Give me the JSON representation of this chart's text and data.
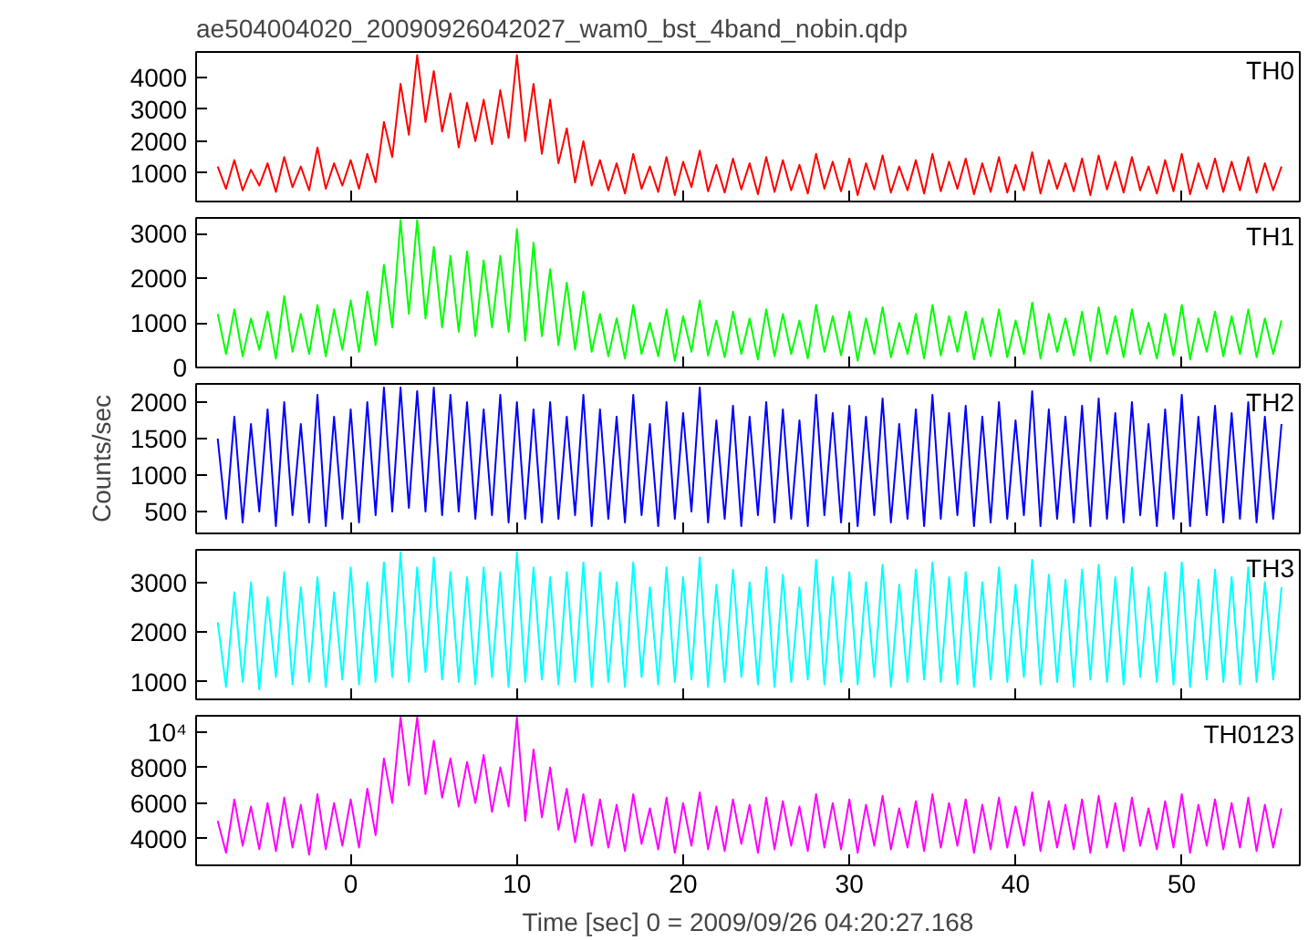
{
  "chart_data": [
    {
      "type": "line",
      "title": "ae504004020_20090926042027_wam0_bst_4band_nobin.qdp",
      "xlim": [
        -9.3,
        57.1
      ],
      "xticks": [
        0,
        10,
        20,
        30,
        40,
        50
      ],
      "ylim": [
        100,
        4800
      ],
      "yticks": [
        1000,
        2000,
        3000,
        4000
      ],
      "tick_labels": "y",
      "x": [
        -8,
        -7.5,
        -7,
        -6.5,
        -6,
        -5.5,
        -5,
        -4.5,
        -4,
        -3.5,
        -3,
        -2.5,
        -2,
        -1.5,
        -1,
        -0.5,
        0,
        0.5,
        1,
        1.5,
        2,
        2.5,
        3,
        3.5,
        4,
        4.5,
        5,
        5.5,
        6,
        6.5,
        7,
        7.5,
        8,
        8.5,
        9,
        9.5,
        10,
        10.5,
        11,
        11.5,
        12,
        12.5,
        13,
        13.5,
        14,
        14.5,
        15,
        15.5,
        16,
        16.5,
        17,
        17.5,
        18,
        18.5,
        19,
        19.5,
        20,
        20.5,
        21,
        21.5,
        22,
        22.5,
        23,
        23.5,
        24,
        24.5,
        25,
        25.5,
        26,
        26.5,
        27,
        27.5,
        28,
        28.5,
        29,
        29.5,
        30,
        30.5,
        31,
        31.5,
        32,
        32.5,
        33,
        33.5,
        34,
        34.5,
        35,
        35.5,
        36,
        36.5,
        37,
        37.5,
        38,
        38.5,
        39,
        39.5,
        40,
        40.5,
        41,
        41.5,
        42,
        42.5,
        43,
        43.5,
        44,
        44.5,
        45,
        45.5,
        46,
        46.5,
        47,
        47.5,
        48,
        48.5,
        49,
        49.5,
        50,
        50.5,
        51,
        51.5,
        52,
        52.5,
        53,
        53.5,
        54,
        54.5,
        55,
        55.5,
        56
      ],
      "series": [
        {
          "name": "TH0",
          "color": "#ff0000",
          "values": [
            1200,
            500,
            1400,
            450,
            1100,
            600,
            1300,
            400,
            1500,
            550,
            1200,
            450,
            1800,
            500,
            1300,
            600,
            1400,
            500,
            1600,
            700,
            2600,
            1500,
            3800,
            2200,
            4700,
            2600,
            4200,
            2300,
            3500,
            1800,
            3200,
            2000,
            3300,
            1900,
            3600,
            2100,
            4700,
            2000,
            3800,
            1600,
            3300,
            1300,
            2400,
            700,
            2000,
            600,
            1400,
            450,
            1300,
            350,
            1600,
            500,
            1200,
            400,
            1500,
            300,
            1350,
            550,
            1700,
            420,
            1250,
            380,
            1450,
            480,
            1300,
            330,
            1500,
            400,
            1400,
            450,
            1250,
            350,
            1600,
            500,
            1350,
            420,
            1450,
            300,
            1300,
            480,
            1550,
            380,
            1200,
            450,
            1400,
            350,
            1600,
            420,
            1350,
            500,
            1450,
            330,
            1300,
            400,
            1500,
            380,
            1250,
            450,
            1650,
            350,
            1400,
            500,
            1300,
            420,
            1450,
            300,
            1550,
            480,
            1350,
            380,
            1500,
            450,
            1200,
            350,
            1400,
            420,
            1600,
            330,
            1300,
            500,
            1450,
            400,
            1350,
            450,
            1500,
            380,
            1300,
            450,
            1200
          ]
        }
      ]
    },
    {
      "type": "line",
      "xlim": [
        -9.3,
        57.1
      ],
      "xticks": [
        0,
        10,
        20,
        30,
        40,
        50
      ],
      "ylim": [
        0,
        3350
      ],
      "yticks": [
        0,
        1000,
        2000,
        3000
      ],
      "tick_labels": "y",
      "x": [
        -8,
        -7.5,
        -7,
        -6.5,
        -6,
        -5.5,
        -5,
        -4.5,
        -4,
        -3.5,
        -3,
        -2.5,
        -2,
        -1.5,
        -1,
        -0.5,
        0,
        0.5,
        1,
        1.5,
        2,
        2.5,
        3,
        3.5,
        4,
        4.5,
        5,
        5.5,
        6,
        6.5,
        7,
        7.5,
        8,
        8.5,
        9,
        9.5,
        10,
        10.5,
        11,
        11.5,
        12,
        12.5,
        13,
        13.5,
        14,
        14.5,
        15,
        15.5,
        16,
        16.5,
        17,
        17.5,
        18,
        18.5,
        19,
        19.5,
        20,
        20.5,
        21,
        21.5,
        22,
        22.5,
        23,
        23.5,
        24,
        24.5,
        25,
        25.5,
        26,
        26.5,
        27,
        27.5,
        28,
        28.5,
        29,
        29.5,
        30,
        30.5,
        31,
        31.5,
        32,
        32.5,
        33,
        33.5,
        34,
        34.5,
        35,
        35.5,
        36,
        36.5,
        37,
        37.5,
        38,
        38.5,
        39,
        39.5,
        40,
        40.5,
        41,
        41.5,
        42,
        42.5,
        43,
        43.5,
        44,
        44.5,
        45,
        45.5,
        46,
        46.5,
        47,
        47.5,
        48,
        48.5,
        49,
        49.5,
        50,
        50.5,
        51,
        51.5,
        52,
        52.5,
        53,
        53.5,
        54,
        54.5,
        55,
        55.5,
        56
      ],
      "series": [
        {
          "name": "TH1",
          "color": "#00ff00",
          "values": [
            1200,
            300,
            1300,
            250,
            1100,
            400,
            1250,
            200,
            1600,
            350,
            1200,
            300,
            1400,
            250,
            1300,
            400,
            1500,
            350,
            1700,
            500,
            2300,
            900,
            3300,
            1200,
            3300,
            1100,
            2700,
            900,
            2500,
            800,
            2600,
            700,
            2400,
            900,
            2500,
            800,
            3100,
            600,
            2800,
            700,
            2200,
            500,
            1900,
            400,
            1700,
            350,
            1200,
            250,
            1100,
            200,
            1400,
            300,
            1000,
            250,
            1300,
            150,
            1150,
            350,
            1500,
            270,
            1050,
            230,
            1250,
            300,
            1100,
            180,
            1300,
            250,
            1200,
            300,
            1050,
            200,
            1400,
            350,
            1150,
            270,
            1250,
            150,
            1100,
            300,
            1350,
            230,
            1000,
            300,
            1200,
            200,
            1400,
            270,
            1150,
            350,
            1250,
            180,
            1100,
            250,
            1300,
            230,
            1050,
            300,
            1450,
            200,
            1200,
            350,
            1100,
            270,
            1250,
            150,
            1350,
            300,
            1150,
            230,
            1300,
            300,
            1000,
            200,
            1200,
            270,
            1400,
            180,
            1100,
            350,
            1250,
            250,
            1150,
            300,
            1300,
            230,
            1100,
            300,
            1050
          ]
        }
      ]
    },
    {
      "type": "line",
      "ylabel": "Counts/sec",
      "xlim": [
        -9.3,
        57.1
      ],
      "xticks": [
        0,
        10,
        20,
        30,
        40,
        50
      ],
      "ylim": [
        200,
        2250
      ],
      "yticks": [
        500,
        1000,
        1500,
        2000
      ],
      "tick_labels": "y",
      "x": [
        -8,
        -7.5,
        -7,
        -6.5,
        -6,
        -5.5,
        -5,
        -4.5,
        -4,
        -3.5,
        -3,
        -2.5,
        -2,
        -1.5,
        -1,
        -0.5,
        0,
        0.5,
        1,
        1.5,
        2,
        2.5,
        3,
        3.5,
        4,
        4.5,
        5,
        5.5,
        6,
        6.5,
        7,
        7.5,
        8,
        8.5,
        9,
        9.5,
        10,
        10.5,
        11,
        11.5,
        12,
        12.5,
        13,
        13.5,
        14,
        14.5,
        15,
        15.5,
        16,
        16.5,
        17,
        17.5,
        18,
        18.5,
        19,
        19.5,
        20,
        20.5,
        21,
        21.5,
        22,
        22.5,
        23,
        23.5,
        24,
        24.5,
        25,
        25.5,
        26,
        26.5,
        27,
        27.5,
        28,
        28.5,
        29,
        29.5,
        30,
        30.5,
        31,
        31.5,
        32,
        32.5,
        33,
        33.5,
        34,
        34.5,
        35,
        35.5,
        36,
        36.5,
        37,
        37.5,
        38,
        38.5,
        39,
        39.5,
        40,
        40.5,
        41,
        41.5,
        42,
        42.5,
        43,
        43.5,
        44,
        44.5,
        45,
        45.5,
        46,
        46.5,
        47,
        47.5,
        48,
        48.5,
        49,
        49.5,
        50,
        50.5,
        51,
        51.5,
        52,
        52.5,
        53,
        53.5,
        54,
        54.5,
        55,
        55.5,
        56
      ],
      "series": [
        {
          "name": "TH2",
          "color": "#0000ff",
          "values": [
            1500,
            400,
            1800,
            350,
            1700,
            500,
            1900,
            300,
            2000,
            450,
            1700,
            350,
            2100,
            300,
            1800,
            400,
            1900,
            350,
            2000,
            450,
            2200,
            500,
            2200,
            550,
            2150,
            500,
            2200,
            450,
            2100,
            500,
            2000,
            400,
            1900,
            450,
            2100,
            350,
            2000,
            400,
            1900,
            350,
            2000,
            400,
            1800,
            450,
            2100,
            300,
            1900,
            400,
            1800,
            350,
            2100,
            450,
            1700,
            300,
            2000,
            400,
            1850,
            500,
            2200,
            350,
            1750,
            400,
            1950,
            300,
            1800,
            450,
            2000,
            350,
            1900,
            400,
            1750,
            300,
            2100,
            450,
            1850,
            350,
            1950,
            300,
            1800,
            450,
            2050,
            350,
            1700,
            400,
            1900,
            300,
            2100,
            400,
            1850,
            450,
            1950,
            300,
            1800,
            350,
            2000,
            400,
            1750,
            450,
            2150,
            300,
            1900,
            400,
            1800,
            350,
            1950,
            300,
            2050,
            400,
            1850,
            350,
            2000,
            450,
            1700,
            300,
            1900,
            400,
            2100,
            300,
            1800,
            450,
            1950,
            350,
            1850,
            400,
            2000,
            350,
            1800,
            400,
            1700
          ]
        }
      ]
    },
    {
      "type": "line",
      "xlim": [
        -9.3,
        57.1
      ],
      "xticks": [
        0,
        10,
        20,
        30,
        40,
        50
      ],
      "ylim": [
        650,
        3650
      ],
      "yticks": [
        1000,
        2000,
        3000
      ],
      "tick_labels": "y",
      "x": [
        -8,
        -7.5,
        -7,
        -6.5,
        -6,
        -5.5,
        -5,
        -4.5,
        -4,
        -3.5,
        -3,
        -2.5,
        -2,
        -1.5,
        -1,
        -0.5,
        0,
        0.5,
        1,
        1.5,
        2,
        2.5,
        3,
        3.5,
        4,
        4.5,
        5,
        5.5,
        6,
        6.5,
        7,
        7.5,
        8,
        8.5,
        9,
        9.5,
        10,
        10.5,
        11,
        11.5,
        12,
        12.5,
        13,
        13.5,
        14,
        14.5,
        15,
        15.5,
        16,
        16.5,
        17,
        17.5,
        18,
        18.5,
        19,
        19.5,
        20,
        20.5,
        21,
        21.5,
        22,
        22.5,
        23,
        23.5,
        24,
        24.5,
        25,
        25.5,
        26,
        26.5,
        27,
        27.5,
        28,
        28.5,
        29,
        29.5,
        30,
        30.5,
        31,
        31.5,
        32,
        32.5,
        33,
        33.5,
        34,
        34.5,
        35,
        35.5,
        36,
        36.5,
        37,
        37.5,
        38,
        38.5,
        39,
        39.5,
        40,
        40.5,
        41,
        41.5,
        42,
        42.5,
        43,
        43.5,
        44,
        44.5,
        45,
        45.5,
        46,
        46.5,
        47,
        47.5,
        48,
        48.5,
        49,
        49.5,
        50,
        50.5,
        51,
        51.5,
        52,
        52.5,
        53,
        53.5,
        54,
        54.5,
        55,
        55.5,
        56
      ],
      "series": [
        {
          "name": "TH3",
          "color": "#00ffff",
          "values": [
            2200,
            900,
            2800,
            1000,
            3000,
            850,
            2700,
            1100,
            3200,
            950,
            2900,
            1000,
            3100,
            900,
            2800,
            1050,
            3300,
            950,
            3000,
            1000,
            3400,
            1100,
            3600,
            1000,
            3300,
            1200,
            3500,
            1050,
            3200,
            1000,
            3100,
            950,
            3300,
            1100,
            3200,
            900,
            3600,
            1000,
            3300,
            1050,
            3100,
            950,
            3200,
            1000,
            3400,
            900,
            3200,
            1000,
            3000,
            900,
            3400,
            1100,
            2900,
            950,
            3300,
            1000,
            3100,
            1050,
            3500,
            900,
            2950,
            1000,
            3250,
            1100,
            3000,
            950,
            3300,
            900,
            3150,
            1000,
            2900,
            1050,
            3450,
            950,
            3100,
            1000,
            3200,
            950,
            3000,
            1100,
            3350,
            900,
            2950,
            1000,
            3250,
            1050,
            3400,
            1000,
            3100,
            950,
            3200,
            900,
            3000,
            1050,
            3300,
            1000,
            2950,
            1100,
            3450,
            950,
            3150,
            1000,
            3050,
            900,
            3250,
            1050,
            3350,
            1000,
            3100,
            950,
            3300,
            1100,
            2900,
            1000,
            3200,
            950,
            3400,
            900,
            3050,
            1050,
            3250,
            1000,
            3100,
            950,
            3300,
            1000,
            3000,
            1050,
            2900
          ]
        }
      ]
    },
    {
      "type": "line",
      "xlabel": "Time [sec] 0 = 2009/09/26 04:20:27.168",
      "xlim": [
        -9.3,
        57.1
      ],
      "xticks": [
        0,
        10,
        20,
        30,
        40,
        50
      ],
      "ylim": [
        2500,
        10900
      ],
      "yticks": [
        4000,
        6000,
        8000,
        {
          "value": 10000,
          "label": "10⁴"
        }
      ],
      "x": [
        -8,
        -7.5,
        -7,
        -6.5,
        -6,
        -5.5,
        -5,
        -4.5,
        -4,
        -3.5,
        -3,
        -2.5,
        -2,
        -1.5,
        -1,
        -0.5,
        0,
        0.5,
        1,
        1.5,
        2,
        2.5,
        3,
        3.5,
        4,
        4.5,
        5,
        5.5,
        6,
        6.5,
        7,
        7.5,
        8,
        8.5,
        9,
        9.5,
        10,
        10.5,
        11,
        11.5,
        12,
        12.5,
        13,
        13.5,
        14,
        14.5,
        15,
        15.5,
        16,
        16.5,
        17,
        17.5,
        18,
        18.5,
        19,
        19.5,
        20,
        20.5,
        21,
        21.5,
        22,
        22.5,
        23,
        23.5,
        24,
        24.5,
        25,
        25.5,
        26,
        26.5,
        27,
        27.5,
        28,
        28.5,
        29,
        29.5,
        30,
        30.5,
        31,
        31.5,
        32,
        32.5,
        33,
        33.5,
        34,
        34.5,
        35,
        35.5,
        36,
        36.5,
        37,
        37.5,
        38,
        38.5,
        39,
        39.5,
        40,
        40.5,
        41,
        41.5,
        42,
        42.5,
        43,
        43.5,
        44,
        44.5,
        45,
        45.5,
        46,
        46.5,
        47,
        47.5,
        48,
        48.5,
        49,
        49.5,
        50,
        50.5,
        51,
        51.5,
        52,
        52.5,
        53,
        53.5,
        54,
        54.5,
        55,
        55.5,
        56
      ],
      "series": [
        {
          "name": "TH0123",
          "color": "#ff00ff",
          "values": [
            5000,
            3200,
            6200,
            3600,
            5800,
            3400,
            6000,
            3300,
            6300,
            3500,
            5900,
            3100,
            6500,
            3400,
            6000,
            3600,
            6200,
            3500,
            6800,
            4200,
            8500,
            6000,
            10800,
            7000,
            10800,
            6500,
            9500,
            6300,
            8500,
            5800,
            8300,
            6000,
            8700,
            5500,
            8000,
            5800,
            10800,
            5000,
            9000,
            5200,
            8000,
            4500,
            6800,
            3800,
            6500,
            3600,
            6200,
            3500,
            5900,
            3300,
            6500,
            3700,
            5700,
            3400,
            6300,
            3200,
            6000,
            3600,
            6600,
            3400,
            5800,
            3300,
            6200,
            3700,
            5900,
            3200,
            6300,
            3400,
            6100,
            3600,
            5800,
            3300,
            6500,
            3500,
            6000,
            3400,
            6200,
            3200,
            5900,
            3600,
            6400,
            3400,
            5700,
            3500,
            6100,
            3300,
            6500,
            3500,
            6000,
            3600,
            6200,
            3200,
            5900,
            3400,
            6300,
            3500,
            5800,
            3600,
            6600,
            3300,
            6100,
            3500,
            5900,
            3400,
            6200,
            3200,
            6400,
            3500,
            6000,
            3300,
            6300,
            3600,
            5700,
            3400,
            6100,
            3500,
            6500,
            3200,
            5900,
            3600,
            6200,
            3400,
            6000,
            3500,
            6300,
            3300,
            5900,
            3500,
            5700
          ]
        }
      ]
    }
  ]
}
